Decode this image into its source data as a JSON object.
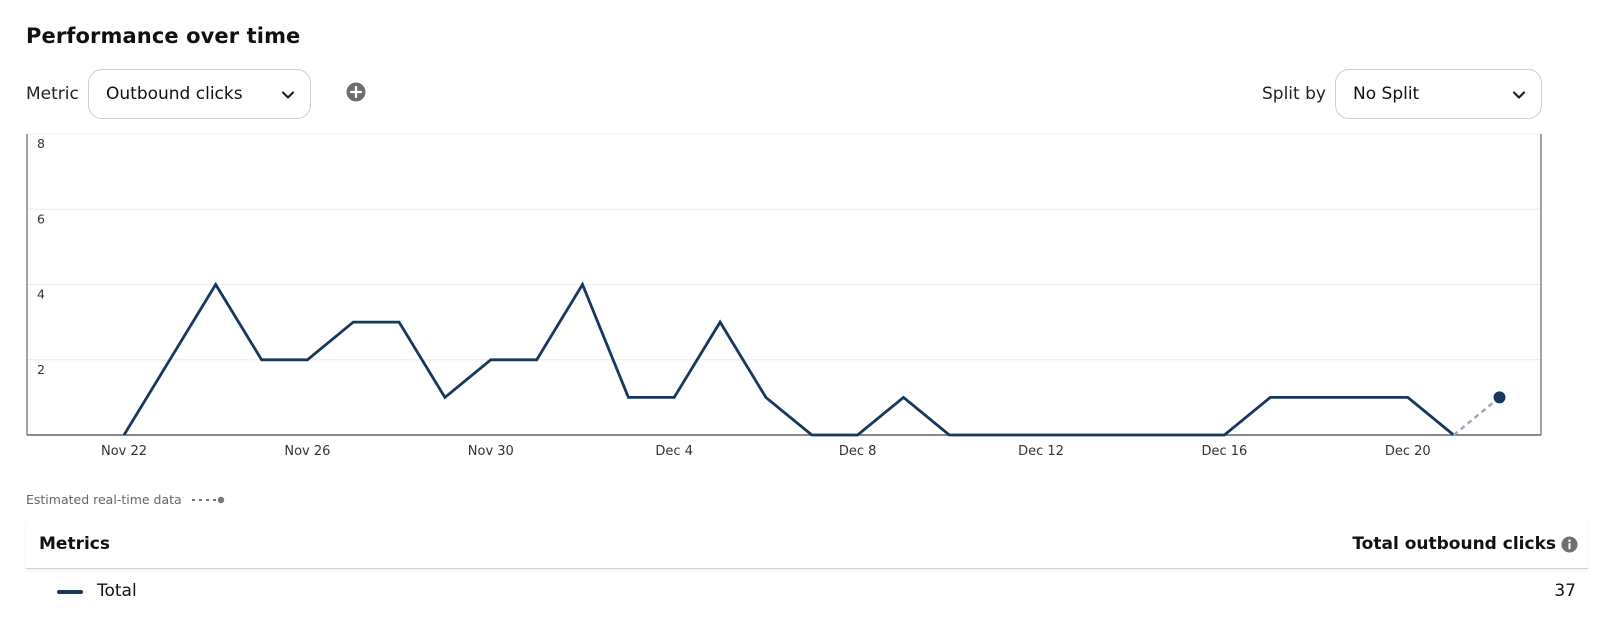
{
  "header": {
    "title": "Performance over time"
  },
  "controls": {
    "metric_label": "Metric",
    "metric_value": "Outbound clicks",
    "split_label": "Split by",
    "split_value": "No Split"
  },
  "chart_data": {
    "type": "line",
    "title": "",
    "xlabel": "",
    "ylabel": "",
    "ylim": [
      0,
      8
    ],
    "y_ticks": [
      "2",
      "4",
      "6",
      "8"
    ],
    "x_ticks": [
      "Nov 22",
      "Nov 26",
      "Nov 30",
      "Dec 4",
      "Dec 8",
      "Dec 12",
      "Dec 16",
      "Dec 20"
    ],
    "grid": true,
    "x": [
      "Nov 22",
      "Nov 23",
      "Nov 24",
      "Nov 25",
      "Nov 26",
      "Nov 27",
      "Nov 28",
      "Nov 29",
      "Nov 30",
      "Dec 1",
      "Dec 2",
      "Dec 3",
      "Dec 4",
      "Dec 5",
      "Dec 6",
      "Dec 7",
      "Dec 8",
      "Dec 9",
      "Dec 10",
      "Dec 11",
      "Dec 12",
      "Dec 13",
      "Dec 14",
      "Dec 15",
      "Dec 16",
      "Dec 17",
      "Dec 18",
      "Dec 19",
      "Dec 20",
      "Dec 21",
      "Dec 22"
    ],
    "series": [
      {
        "values": [
          0,
          2,
          4,
          2,
          2,
          3,
          3,
          1,
          2,
          2,
          4,
          1,
          1,
          3,
          1,
          0,
          0,
          1,
          0,
          0,
          0,
          0,
          0,
          0,
          0,
          1,
          1,
          1,
          1,
          0,
          null
        ]
      },
      {
        "name": "Estimated real-time data",
        "style": "dashed",
        "values": [
          null,
          null,
          null,
          null,
          null,
          null,
          null,
          null,
          null,
          null,
          null,
          null,
          null,
          null,
          null,
          null,
          null,
          null,
          null,
          null,
          null,
          null,
          null,
          null,
          null,
          null,
          null,
          null,
          null,
          0,
          1
        ]
      }
    ],
    "colors": {
      "line": "#17375e",
      "estimate": "#9aa8bf",
      "grid": "#ececec",
      "axis": "#444444"
    }
  },
  "legend": {
    "estimated_label": "Estimated real-time data"
  },
  "table": {
    "col_metrics": "Metrics",
    "col_total": "Total outbound clicks",
    "rows": [
      {
        "label": "Total",
        "value": "37"
      }
    ]
  }
}
